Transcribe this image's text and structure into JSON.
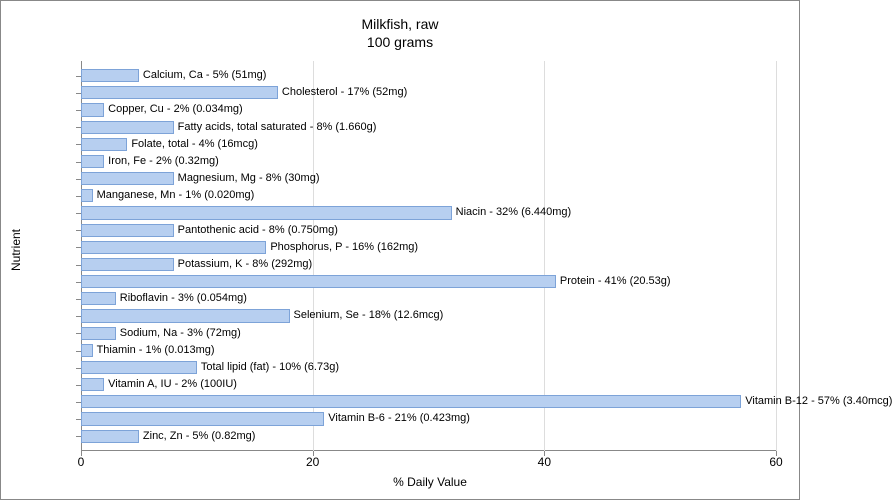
{
  "title_line1": "Milkfish, raw",
  "title_line2": "100 grams",
  "xlabel": "% Daily Value",
  "ylabel": "Nutrient",
  "chart": {
    "type": "bar",
    "orientation": "horizontal",
    "xlim": [
      0,
      60
    ],
    "xtick_step": 20,
    "xticks": [
      0,
      20,
      40,
      60
    ],
    "bar_fill": "#b7cff0",
    "bar_stroke": "#7da3d8",
    "grid_color": "#dddddd",
    "axis_color": "#888888",
    "background_color": "#ffffff",
    "title_fontsize": 14,
    "label_fontsize": 12,
    "bar_label_fontsize": 11,
    "items": [
      {
        "label": "Calcium, Ca - 5% (51mg)",
        "value": 5
      },
      {
        "label": "Cholesterol - 17% (52mg)",
        "value": 17
      },
      {
        "label": "Copper, Cu - 2% (0.034mg)",
        "value": 2
      },
      {
        "label": "Fatty acids, total saturated - 8% (1.660g)",
        "value": 8
      },
      {
        "label": "Folate, total - 4% (16mcg)",
        "value": 4
      },
      {
        "label": "Iron, Fe - 2% (0.32mg)",
        "value": 2
      },
      {
        "label": "Magnesium, Mg - 8% (30mg)",
        "value": 8
      },
      {
        "label": "Manganese, Mn - 1% (0.020mg)",
        "value": 1
      },
      {
        "label": "Niacin - 32% (6.440mg)",
        "value": 32
      },
      {
        "label": "Pantothenic acid - 8% (0.750mg)",
        "value": 8
      },
      {
        "label": "Phosphorus, P - 16% (162mg)",
        "value": 16
      },
      {
        "label": "Potassium, K - 8% (292mg)",
        "value": 8
      },
      {
        "label": "Protein - 41% (20.53g)",
        "value": 41
      },
      {
        "label": "Riboflavin - 3% (0.054mg)",
        "value": 3
      },
      {
        "label": "Selenium, Se - 18% (12.6mcg)",
        "value": 18
      },
      {
        "label": "Sodium, Na - 3% (72mg)",
        "value": 3
      },
      {
        "label": "Thiamin - 1% (0.013mg)",
        "value": 1
      },
      {
        "label": "Total lipid (fat) - 10% (6.73g)",
        "value": 10
      },
      {
        "label": "Vitamin A, IU - 2% (100IU)",
        "value": 2
      },
      {
        "label": "Vitamin B-12 - 57% (3.40mcg)",
        "value": 57
      },
      {
        "label": "Vitamin B-6 - 21% (0.423mg)",
        "value": 21
      },
      {
        "label": "Zinc, Zn - 5% (0.82mg)",
        "value": 5
      }
    ]
  }
}
